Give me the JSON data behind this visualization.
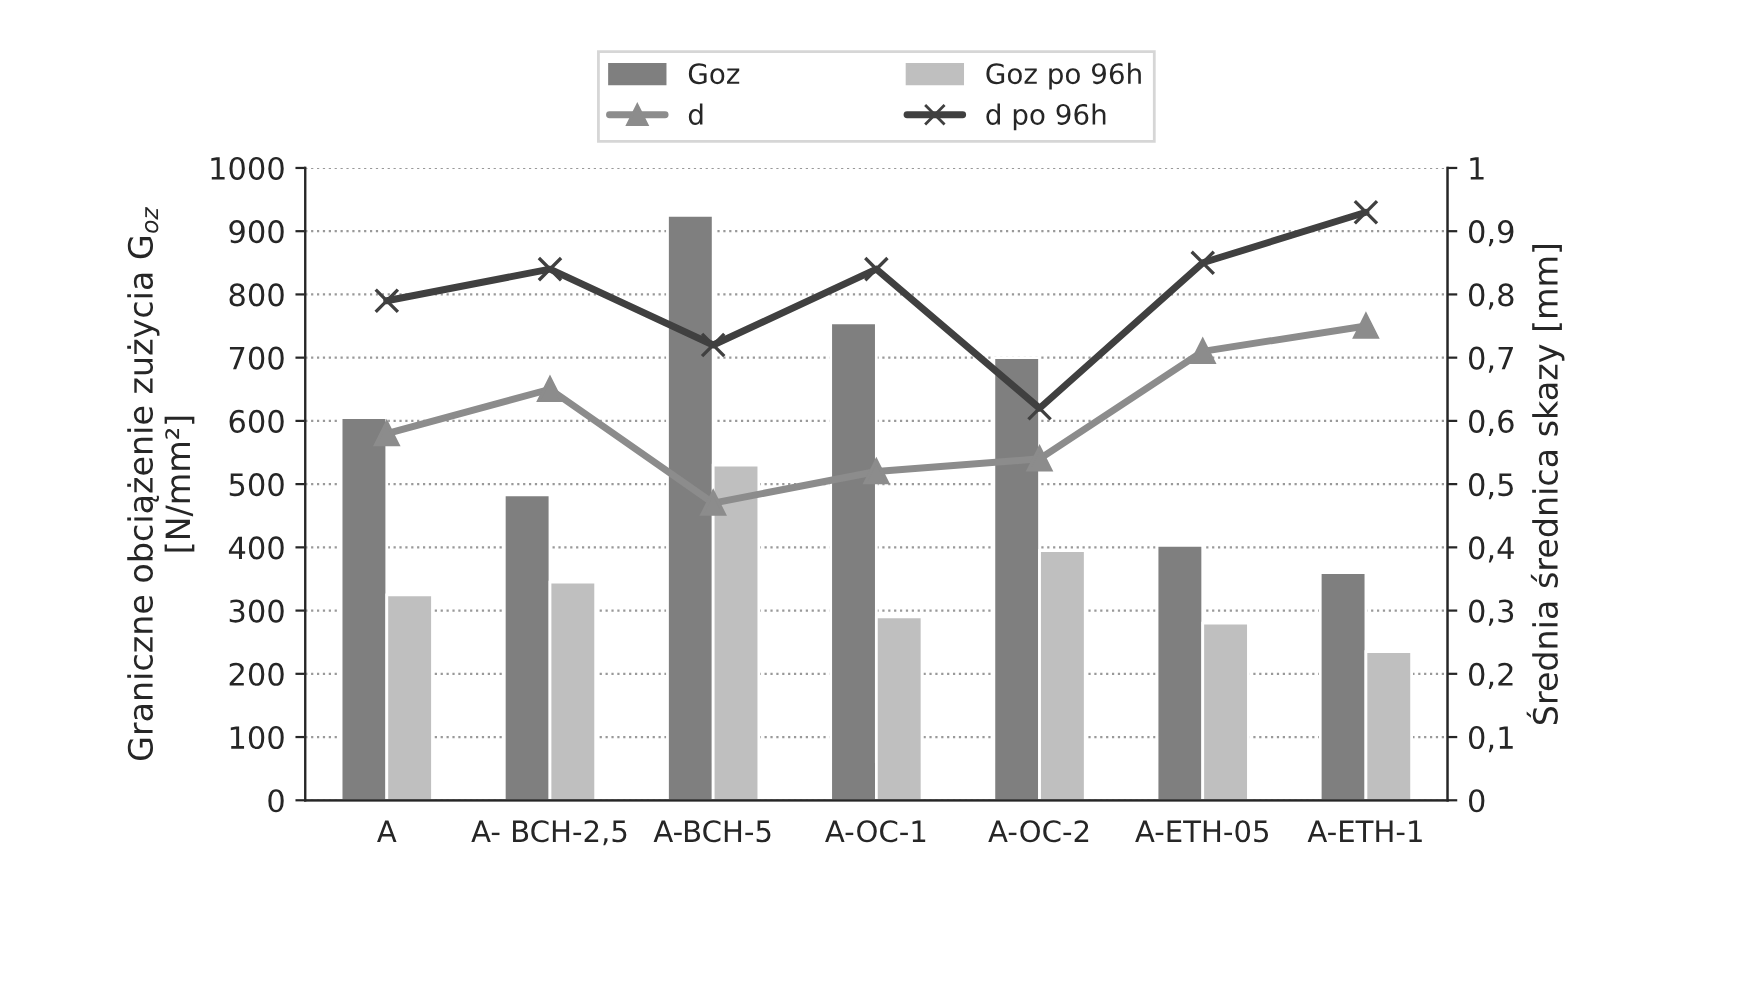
{
  "chart_data": {
    "type": "bar",
    "ylabel": "Graniczne obciążenie zużycia G$_{oz}$\n[N/mm²]",
    "y2label": "Średnia średnica skazy [mm]",
    "categories": [
      "A",
      "A- BCH-2,5",
      "A-BCH-5",
      "A-OC-1",
      "A-OC-2",
      "A-ETH-05",
      "A-ETH-1"
    ],
    "series": [
      {
        "name": "Goz",
        "color": "#7f7f7f",
        "values": [
          605,
          483,
          925,
          755,
          700,
          403,
          360
        ]
      },
      {
        "name": "Goz po 96h",
        "color": "#bfbfbf",
        "values": [
          325,
          345,
          530,
          290,
          395,
          280,
          235
        ]
      },
      {
        "name": "d",
        "type": "line",
        "axis": "y2",
        "marker": "triangle",
        "color": "#8c8c8c",
        "values": [
          0.58,
          0.65,
          0.47,
          0.52,
          0.54,
          0.71,
          0.75
        ]
      },
      {
        "name": "d po 96h",
        "type": "line",
        "axis": "y2",
        "marker": "cross",
        "color": "#404040",
        "values": [
          0.79,
          0.84,
          0.72,
          0.84,
          0.62,
          0.85,
          0.93
        ]
      }
    ],
    "ylim": [
      0,
      1000
    ],
    "yticks": [
      0,
      100,
      200,
      300,
      400,
      500,
      600,
      700,
      800,
      900,
      1000
    ],
    "y2lim": [
      0,
      1
    ],
    "y2ticks": [
      0,
      {
        "value": 0.1,
        "label": "0,1"
      },
      {
        "value": 0.2,
        "label": "0,2"
      },
      {
        "value": 0.3,
        "label": "0,3"
      },
      {
        "value": 0.4,
        "label": "0,4"
      },
      {
        "value": 0.5,
        "label": "0,5"
      },
      {
        "value": 0.6,
        "label": "0,6"
      },
      {
        "value": 0.7,
        "label": "0,7"
      },
      {
        "value": 0.8,
        "label": "0,8"
      },
      {
        "value": 0.9,
        "label": "0,9"
      },
      1
    ],
    "grid": "y",
    "legend": "top"
  }
}
